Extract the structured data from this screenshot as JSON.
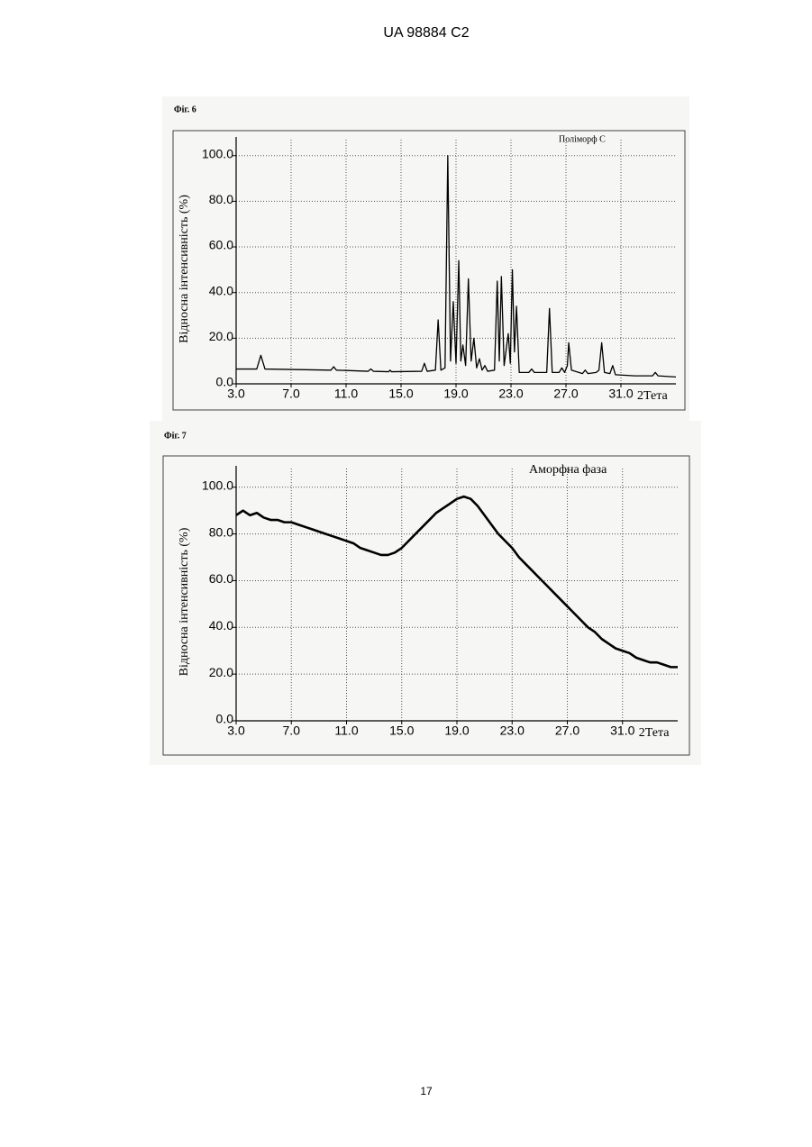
{
  "header": "UA 98884 C2",
  "page_number": "17",
  "chart_data": [
    {
      "type": "line",
      "label": "Фіг. 6",
      "annotation": "Поліморф С",
      "y_label": "Відносна інтенсивність (%)",
      "x_label": "2Тета",
      "color": "#000000",
      "grid": true,
      "xlim": [
        3,
        35
      ],
      "ylim": [
        0,
        107
      ],
      "xticks": [
        {
          "value": 3,
          "label": "3.0"
        },
        {
          "value": 7,
          "label": "7.0"
        },
        {
          "value": 11,
          "label": "11.0"
        },
        {
          "value": 15,
          "label": "15.0"
        },
        {
          "value": 19,
          "label": "19.0"
        },
        {
          "value": 23,
          "label": "23.0"
        },
        {
          "value": 27,
          "label": "27.0"
        },
        {
          "value": 31,
          "label": "31.0"
        }
      ],
      "yticks": [
        {
          "value": 0,
          "label": "0.0"
        },
        {
          "value": 20,
          "label": "20.0"
        },
        {
          "value": 40,
          "label": "40.0"
        },
        {
          "value": 60,
          "label": "60.0"
        },
        {
          "value": 80,
          "label": "80.0"
        },
        {
          "value": 100,
          "label": "100.0"
        }
      ],
      "x": [
        3.0,
        4.5,
        4.8,
        5.1,
        8.0,
        9.9,
        10.1,
        10.3,
        12.6,
        12.8,
        13.0,
        14.1,
        14.2,
        14.3,
        16.5,
        16.7,
        16.9,
        17.5,
        17.7,
        17.9,
        18.2,
        18.4,
        18.6,
        18.8,
        19.0,
        19.2,
        19.35,
        19.5,
        19.7,
        19.9,
        20.1,
        20.3,
        20.5,
        20.7,
        20.9,
        21.1,
        21.3,
        21.8,
        22.0,
        22.15,
        22.3,
        22.5,
        22.8,
        22.95,
        23.1,
        23.25,
        23.4,
        23.6,
        24.3,
        24.5,
        24.7,
        25.6,
        25.8,
        26.0,
        26.5,
        26.7,
        26.9,
        27.1,
        27.2,
        27.4,
        28.2,
        28.4,
        28.6,
        29.2,
        29.4,
        29.6,
        29.8,
        30.2,
        30.4,
        30.6,
        32.0,
        33.3,
        33.5,
        33.7,
        35.0
      ],
      "values": [
        6.5,
        6.5,
        12.5,
        6.5,
        6.2,
        6,
        7.5,
        6,
        5.5,
        6.5,
        5.5,
        5.3,
        6,
        5.3,
        5.5,
        9,
        5.5,
        6,
        28,
        6,
        7,
        100,
        10,
        36,
        9,
        54,
        10,
        17,
        8,
        46,
        10,
        20,
        7,
        11,
        6,
        8,
        5.5,
        6,
        45,
        10,
        47,
        8,
        22,
        9,
        50,
        14,
        34,
        5,
        5,
        6.5,
        5,
        5,
        33,
        5,
        5,
        7,
        5,
        8,
        18,
        6,
        4.5,
        6,
        4.5,
        5,
        6,
        18,
        5,
        4.5,
        8,
        4,
        3.5,
        3.5,
        5,
        3.5,
        3
      ]
    },
    {
      "type": "line",
      "label": "Фіг. 7",
      "annotation": "Аморфна фаза",
      "y_label": "Відносна інтенсивність (%)",
      "x_label": "2Тета",
      "color": "#000000",
      "grid": true,
      "xlim": [
        3,
        35
      ],
      "ylim": [
        0,
        108
      ],
      "xticks": [
        {
          "value": 3,
          "label": "3.0"
        },
        {
          "value": 7,
          "label": "7.0"
        },
        {
          "value": 11,
          "label": "11.0"
        },
        {
          "value": 15,
          "label": "15.0"
        },
        {
          "value": 19,
          "label": "19.0"
        },
        {
          "value": 23,
          "label": "23.0"
        },
        {
          "value": 27,
          "label": "27.0"
        },
        {
          "value": 31,
          "label": "31.0"
        }
      ],
      "yticks": [
        {
          "value": 0,
          "label": "0.0"
        },
        {
          "value": 20,
          "label": "20.0"
        },
        {
          "value": 40,
          "label": "40.0"
        },
        {
          "value": 60,
          "label": "60.0"
        },
        {
          "value": 80,
          "label": "80.0"
        },
        {
          "value": 100,
          "label": "100.0"
        }
      ],
      "x": [
        3,
        3.5,
        4,
        4.5,
        5,
        5.5,
        6,
        6.5,
        7,
        7.5,
        8,
        8.5,
        9,
        9.5,
        10,
        10.5,
        11,
        11.5,
        12,
        12.5,
        13,
        13.5,
        14,
        14.5,
        15,
        15.5,
        16,
        16.5,
        17,
        17.5,
        18,
        18.5,
        19,
        19.5,
        20,
        20.5,
        21,
        21.5,
        22,
        22.5,
        23,
        23.5,
        24,
        24.5,
        25,
        25.5,
        26,
        26.5,
        27,
        27.5,
        28,
        28.5,
        29,
        29.5,
        30,
        30.5,
        31,
        31.5,
        32,
        32.5,
        33,
        33.5,
        34,
        34.5,
        35
      ],
      "values": [
        88,
        90,
        88,
        89,
        87,
        86,
        86,
        85,
        85,
        84,
        83,
        82,
        81,
        80,
        79,
        78,
        77,
        76,
        74,
        73,
        72,
        71,
        71,
        72,
        74,
        77,
        80,
        83,
        86,
        89,
        91,
        93,
        95,
        96,
        95,
        92,
        88,
        84,
        80,
        77,
        74,
        70,
        67,
        64,
        61,
        58,
        55,
        52,
        49,
        46,
        43,
        40,
        38,
        35,
        33,
        31,
        30,
        29,
        27,
        26,
        25,
        25,
        24,
        23,
        23
      ]
    }
  ]
}
